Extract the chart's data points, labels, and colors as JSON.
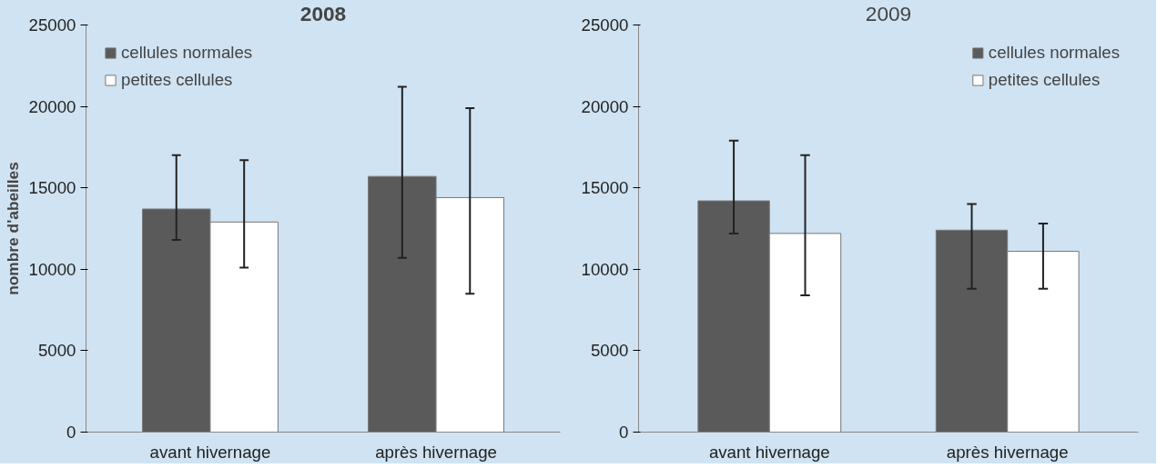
{
  "chart_data": [
    {
      "type": "bar",
      "title": "2008",
      "ylabel": "nombre d'abeilles",
      "categories": [
        "avant hivernage",
        "après hivernage"
      ],
      "ylim": [
        0,
        25000
      ],
      "yticks": [
        0,
        5000,
        10000,
        15000,
        20000,
        25000
      ],
      "grid": false,
      "legend": "top left",
      "series": [
        {
          "name": "cellules normales",
          "color": "#5a5a5a",
          "values": [
            13700,
            15700
          ],
          "errors": [
            [
              11800,
              17000
            ],
            [
              10700,
              21200
            ]
          ]
        },
        {
          "name": "petites cellules",
          "color": "#ffffff",
          "values": [
            12900,
            14400
          ],
          "errors": [
            [
              10100,
              16700
            ],
            [
              8500,
              19900
            ]
          ]
        }
      ]
    },
    {
      "type": "bar",
      "title": "2009",
      "categories": [
        "avant hivernage",
        "après hivernage"
      ],
      "ylim": [
        0,
        25000
      ],
      "yticks": [
        0,
        5000,
        10000,
        15000,
        20000,
        25000
      ],
      "grid": false,
      "legend": "top right",
      "series": [
        {
          "name": "cellules normales",
          "color": "#5a5a5a",
          "values": [
            14200,
            12400
          ],
          "errors": [
            [
              12200,
              17900
            ],
            [
              8800,
              14000
            ]
          ]
        },
        {
          "name": "petites cellules",
          "color": "#ffffff",
          "values": [
            12200,
            11100
          ],
          "errors": [
            [
              8400,
              17000
            ],
            [
              8800,
              12800
            ]
          ]
        }
      ]
    }
  ]
}
